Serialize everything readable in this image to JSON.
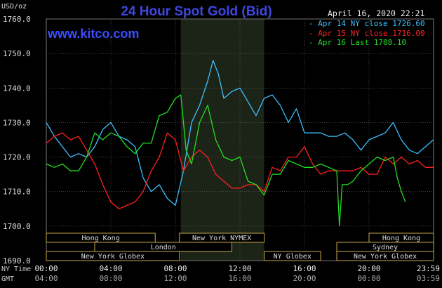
{
  "header": {
    "units": "USD/oz",
    "title": "24 Hour Spot Gold (Bid)",
    "date": "April 16, 2020 22:21",
    "brand": "www.kitco.com"
  },
  "legend": [
    {
      "label": "Apr 14 NY close 1726.60",
      "color": "#3fbfff"
    },
    {
      "label": "Apr 15 NY close 1716.00",
      "color": "#ff2020"
    },
    {
      "label": "Apr 16 Last 1708.10",
      "color": "#22e022"
    }
  ],
  "timezones": {
    "primary": "NY Time",
    "secondary": "GMT"
  },
  "sessions": [
    {
      "label": "Hong Kong",
      "start": "00:00",
      "end": "06:45"
    },
    {
      "label": "London",
      "start": "03:00",
      "end": "11:30"
    },
    {
      "label": "New York Globex",
      "start": "00:00",
      "end": "08:15"
    },
    {
      "label": "New York NYMEX",
      "start": "08:15",
      "end": "13:30"
    },
    {
      "label": "NY Globex",
      "start": "13:30",
      "end": "17:00"
    },
    {
      "label": "Hong Kong",
      "start": "20:00",
      "end": "24:00"
    },
    {
      "label": "Sydney",
      "start": "18:00",
      "end": "24:00"
    },
    {
      "label": "New York Globex",
      "start": "18:00",
      "end": "24:00"
    }
  ],
  "chart_data": {
    "type": "line",
    "title": "24 Hour Spot Gold (Bid)",
    "ylabel": "USD/oz",
    "ylim": [
      1690,
      1760
    ],
    "yticks": [
      "1690.0",
      "1700.0",
      "1710.0",
      "1720.0",
      "1730.0",
      "1740.0",
      "1750.0",
      "1760.0"
    ],
    "xlim": [
      "00:00",
      "24:00"
    ],
    "xticks": [
      "00:00",
      "04:00",
      "08:00",
      "12:00",
      "16:00",
      "20:00",
      "23:59"
    ],
    "xticks_gmt": [
      "04:00",
      "08:00",
      "12:00",
      "16:00",
      "20:00",
      "00:00",
      "03:59"
    ],
    "highlight_band": {
      "start": "08:20",
      "end": "13:30",
      "color": "#1c2418"
    },
    "grid": true,
    "series": [
      {
        "name": "Apr 14 NY close 1726.60",
        "color": "#3fbfff",
        "x": [
          "00:00",
          "00:30",
          "01:00",
          "01:30",
          "02:00",
          "02:30",
          "03:00",
          "03:30",
          "04:00",
          "04:30",
          "05:00",
          "05:30",
          "06:00",
          "06:30",
          "07:00",
          "07:30",
          "08:00",
          "08:30",
          "09:00",
          "09:30",
          "10:00",
          "10:20",
          "10:40",
          "11:00",
          "11:30",
          "12:00",
          "12:30",
          "13:00",
          "13:30",
          "14:00",
          "14:30",
          "15:00",
          "15:30",
          "16:00",
          "16:30",
          "17:00",
          "17:30",
          "18:00",
          "18:30",
          "19:00",
          "19:30",
          "20:00",
          "20:30",
          "21:00",
          "21:30",
          "22:00",
          "22:30",
          "23:00",
          "23:30",
          "23:59"
        ],
        "y": [
          1730,
          1726,
          1723,
          1720,
          1721,
          1720,
          1723,
          1728,
          1730,
          1726,
          1725,
          1723,
          1714,
          1710,
          1712,
          1708,
          1706,
          1716,
          1730,
          1735,
          1742,
          1748,
          1744,
          1737,
          1739,
          1740,
          1736,
          1732,
          1737,
          1738,
          1735,
          1730,
          1734,
          1727,
          1727,
          1727,
          1726,
          1726,
          1727,
          1725,
          1722,
          1725,
          1726,
          1727,
          1730,
          1725,
          1722,
          1721,
          1723,
          1725
        ]
      },
      {
        "name": "Apr 15 NY close 1716.00",
        "color": "#ff2020",
        "x": [
          "00:00",
          "00:30",
          "01:00",
          "01:30",
          "02:00",
          "02:30",
          "03:00",
          "03:30",
          "04:00",
          "04:30",
          "05:00",
          "05:30",
          "06:00",
          "06:30",
          "07:00",
          "07:30",
          "08:00",
          "08:30",
          "09:00",
          "09:30",
          "10:00",
          "10:30",
          "11:00",
          "11:30",
          "12:00",
          "12:30",
          "13:00",
          "13:30",
          "14:00",
          "14:30",
          "15:00",
          "15:30",
          "16:00",
          "16:30",
          "17:00",
          "17:30",
          "18:00",
          "18:30",
          "19:00",
          "19:30",
          "20:00",
          "20:30",
          "21:00",
          "21:30",
          "22:00",
          "22:30",
          "23:00",
          "23:30",
          "23:59"
        ],
        "y": [
          1724,
          1726,
          1727,
          1725,
          1726,
          1722,
          1718,
          1712,
          1707,
          1705,
          1706,
          1707,
          1710,
          1716,
          1720,
          1727,
          1725,
          1716,
          1720,
          1722,
          1720,
          1715,
          1713,
          1711,
          1711,
          1712,
          1712,
          1710,
          1717,
          1716,
          1720,
          1720,
          1723,
          1718,
          1715,
          1716,
          1716,
          1716,
          1716,
          1717,
          1715,
          1715,
          1720,
          1718,
          1720,
          1718,
          1719,
          1717,
          1717
        ]
      },
      {
        "name": "Apr 16 Last 1708.10",
        "color": "#22e022",
        "x": [
          "00:00",
          "00:30",
          "01:00",
          "01:30",
          "02:00",
          "02:30",
          "03:00",
          "03:30",
          "04:00",
          "04:30",
          "05:00",
          "05:30",
          "06:00",
          "06:30",
          "07:00",
          "07:30",
          "08:00",
          "08:20",
          "08:40",
          "09:00",
          "09:30",
          "10:00",
          "10:30",
          "11:00",
          "11:30",
          "12:00",
          "12:30",
          "13:00",
          "13:30",
          "14:00",
          "14:30",
          "15:00",
          "15:30",
          "16:00",
          "16:30",
          "17:00",
          "17:30",
          "18:00",
          "18:10",
          "18:20",
          "18:40",
          "19:00",
          "19:30",
          "20:00",
          "20:30",
          "21:00",
          "21:30",
          "21:45",
          "22:00",
          "22:15"
        ],
        "y": [
          1718,
          1717,
          1718,
          1716,
          1716,
          1720,
          1727,
          1725,
          1727,
          1726,
          1723,
          1721,
          1724,
          1724,
          1732,
          1733,
          1737,
          1738,
          1722,
          1718,
          1730,
          1735,
          1725,
          1720,
          1719,
          1720,
          1713,
          1712,
          1709,
          1715,
          1715,
          1719,
          1718,
          1717,
          1717,
          1718,
          1717,
          1716,
          1700,
          1712,
          1712,
          1713,
          1716,
          1718,
          1720,
          1719,
          1720,
          1714,
          1710,
          1707
        ]
      }
    ]
  }
}
